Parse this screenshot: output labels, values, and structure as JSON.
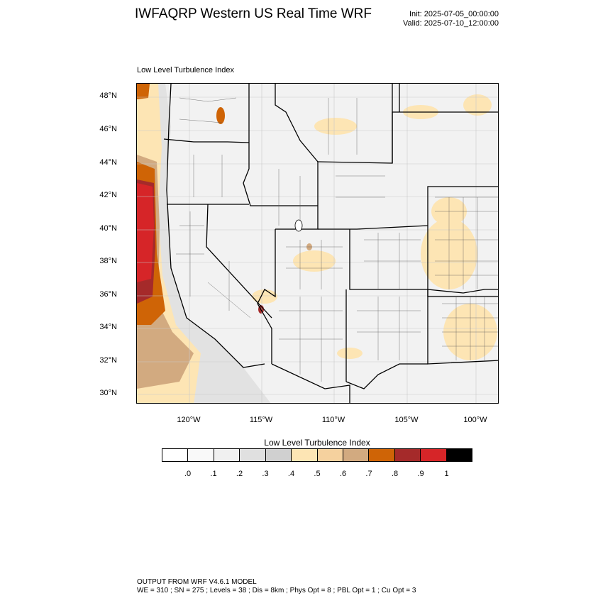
{
  "header": {
    "title": "IWFAQRP Western US Real Time WRF",
    "init": "Init: 2025-07-05_00:00:00",
    "valid": "Valid: 2025-07-10_12:00:00"
  },
  "map": {
    "subtitle": "Low Level Turbulence Index",
    "lat_labels": [
      "48°N",
      "46°N",
      "44°N",
      "42°N",
      "40°N",
      "38°N",
      "36°N",
      "34°N",
      "32°N",
      "30°N"
    ],
    "lon_labels": [
      "120°W",
      "115°W",
      "110°W",
      "105°W",
      "100°W"
    ],
    "extent": {
      "lon_min": -123.8,
      "lon_max": -98.3,
      "lat_min": 29.5,
      "lat_max": 48.6
    }
  },
  "colorbar": {
    "title": "Low Level Turbulence Index",
    "colors": [
      "#ffffff",
      "#f9f9f9",
      "#f0f0f0",
      "#e0e0e0",
      "#d0d0d0",
      "#fde5b4",
      "#f5d19e",
      "#d2aa80",
      "#cf6406",
      "#a52a2a",
      "#d62528",
      "#000000"
    ],
    "labels": [
      ".0",
      ".1",
      ".2",
      ".3",
      ".4",
      ".5",
      ".6",
      ".7",
      ".8",
      ".9",
      "1"
    ]
  },
  "footer": {
    "line1": "OUTPUT FROM WRF V4.6.1 MODEL",
    "line2": "WE = 310 ; SN = 275 ; Levels = 38 ; Dis = 8km ; Phys Opt = 8 ; PBL Opt = 1 ; Cu Opt = 3"
  }
}
